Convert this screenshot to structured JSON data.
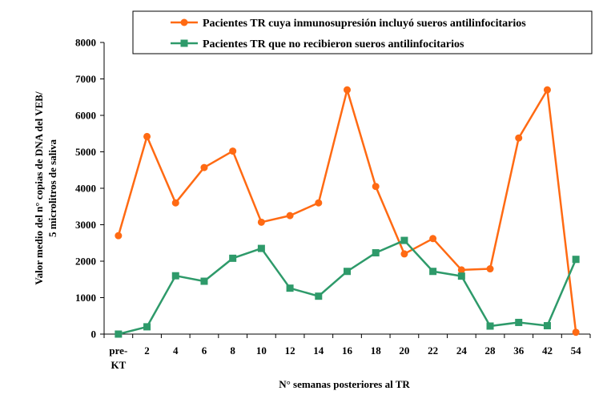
{
  "chart_data": {
    "type": "line",
    "categories": [
      "pre-\nKT",
      "2",
      "4",
      "6",
      "8",
      "10",
      "12",
      "14",
      "16",
      "18",
      "20",
      "22",
      "24",
      "28",
      "36",
      "42",
      "54"
    ],
    "ylim": [
      0,
      8000
    ],
    "yticks": [
      0,
      1000,
      2000,
      3000,
      4000,
      5000,
      6000,
      7000,
      8000
    ],
    "xlabel": "N° semanas posteriores al TR",
    "ylabel_lines": [
      "Valor medio del n° copias de DNA del VEB/",
      "5 microlitros de saliva"
    ],
    "legend_position": "top-right",
    "grid": false,
    "series": [
      {
        "name": "Pacientes TR cuya inmunosupresión incluyó sueros antilinfocitarios",
        "color": "#FF6A13",
        "marker": "circle",
        "values": [
          2700,
          5420,
          3600,
          4570,
          5020,
          3070,
          3250,
          3600,
          6700,
          4050,
          2200,
          2620,
          1760,
          1790,
          5380,
          6700,
          50
        ]
      },
      {
        "name": "Pacientes TR que no recibieron sueros antilinfocitarios",
        "color": "#2E9A6A",
        "marker": "square",
        "values": [
          0,
          200,
          1600,
          1450,
          2080,
          2350,
          1260,
          1040,
          1720,
          2230,
          2570,
          1720,
          1590,
          220,
          320,
          230,
          2050
        ]
      }
    ]
  }
}
